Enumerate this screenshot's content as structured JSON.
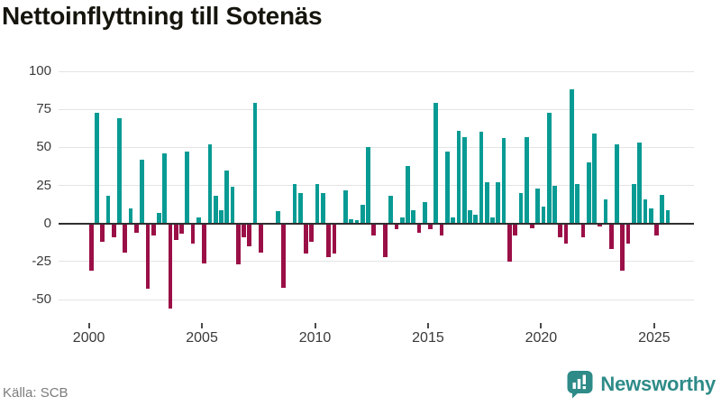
{
  "title": "Nettoinflyttning till Sotenäs",
  "source": "Källa: SCB",
  "brand": {
    "name": "Newsworthy",
    "color": "#2e8b88"
  },
  "chart_data": {
    "type": "bar",
    "title": "Nettoinflyttning till Sotenäs",
    "frequency": "quarterly",
    "x_start": "2000K1",
    "x_end": "2025K3",
    "categories": [
      "2000K1",
      "2000K2",
      "2000K3",
      "2000K4",
      "2001K1",
      "2001K2",
      "2001K3",
      "2001K4",
      "2002K1",
      "2002K2",
      "2002K3",
      "2002K4",
      "2003K1",
      "2003K2",
      "2003K3",
      "2003K4",
      "2004K1",
      "2004K2",
      "2004K3",
      "2004K4",
      "2005K1",
      "2005K2",
      "2005K3",
      "2005K4",
      "2006K1",
      "2006K2",
      "2006K3",
      "2006K4",
      "2007K1",
      "2007K2",
      "2007K3",
      "2007K4",
      "2008K1",
      "2008K2",
      "2008K3",
      "2008K4",
      "2009K1",
      "2009K2",
      "2009K3",
      "2009K4",
      "2010K1",
      "2010K2",
      "2010K3",
      "2010K4",
      "2011K1",
      "2011K2",
      "2011K3",
      "2011K4",
      "2012K1",
      "2012K2",
      "2012K3",
      "2012K4",
      "2013K1",
      "2013K2",
      "2013K3",
      "2013K4",
      "2014K1",
      "2014K2",
      "2014K3",
      "2014K4",
      "2015K1",
      "2015K2",
      "2015K3",
      "2015K4",
      "2016K1",
      "2016K2",
      "2016K3",
      "2016K4",
      "2017K1",
      "2017K2",
      "2017K3",
      "2017K4",
      "2018K1",
      "2018K2",
      "2018K3",
      "2018K4",
      "2019K1",
      "2019K2",
      "2019K3",
      "2019K4",
      "2020K1",
      "2020K2",
      "2020K3",
      "2020K4",
      "2021K1",
      "2021K2",
      "2021K3",
      "2021K4",
      "2022K1",
      "2022K2",
      "2022K3",
      "2022K4",
      "2023K1",
      "2023K2",
      "2023K3",
      "2023K4",
      "2024K1",
      "2024K2",
      "2024K3",
      "2024K4",
      "2025K1",
      "2025K2",
      "2025K3"
    ],
    "values": [
      -31,
      73,
      -12,
      18,
      -9,
      69,
      -19,
      10,
      -6,
      42,
      -43,
      -8,
      7,
      46,
      -56,
      -11,
      -7,
      47,
      -13,
      4,
      -26,
      52,
      18,
      9,
      35,
      24,
      -27,
      -9,
      -15,
      79,
      -19,
      0,
      0,
      8,
      -42,
      0,
      26,
      20,
      -20,
      -12,
      26,
      20,
      -22,
      -20,
      0,
      22,
      3,
      2,
      12,
      50,
      -8,
      0,
      -22,
      18,
      -4,
      4,
      38,
      9,
      -6,
      14,
      -4,
      79,
      -8,
      47,
      4,
      61,
      57,
      9,
      6,
      60,
      27,
      4,
      27,
      56,
      -25,
      -8,
      20,
      57,
      -3,
      23,
      11,
      73,
      25,
      -9,
      -13,
      88,
      26,
      -9,
      40,
      59,
      -2,
      16,
      -17,
      52,
      -31,
      -13,
      26,
      53,
      16,
      10,
      -8,
      19,
      9
    ],
    "y_ticks": [
      100,
      75,
      50,
      25,
      0,
      -25,
      -50
    ],
    "x_tick_labels": [
      "2000",
      "2005",
      "2010",
      "2015",
      "2020",
      "2025"
    ],
    "ylim": [
      -65,
      108
    ],
    "grid": "horizontal",
    "legend": "none",
    "colors": {
      "positive": "#089b94",
      "negative": "#9b0f47"
    }
  }
}
